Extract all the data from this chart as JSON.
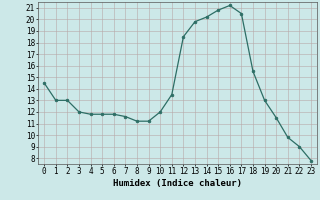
{
  "x": [
    0,
    1,
    2,
    3,
    4,
    5,
    6,
    7,
    8,
    9,
    10,
    11,
    12,
    13,
    14,
    15,
    16,
    17,
    18,
    19,
    20,
    21,
    22,
    23
  ],
  "y": [
    14.5,
    13.0,
    13.0,
    12.0,
    11.8,
    11.8,
    11.8,
    11.6,
    11.2,
    11.2,
    12.0,
    13.5,
    18.5,
    19.8,
    20.2,
    20.8,
    21.2,
    20.5,
    15.5,
    13.0,
    11.5,
    9.8,
    9.0,
    7.8
  ],
  "xlabel": "Humidex (Indice chaleur)",
  "xlim": [
    -0.5,
    23.5
  ],
  "ylim": [
    7.5,
    21.5
  ],
  "yticks": [
    8,
    9,
    10,
    11,
    12,
    13,
    14,
    15,
    16,
    17,
    18,
    19,
    20,
    21
  ],
  "xticks": [
    0,
    1,
    2,
    3,
    4,
    5,
    6,
    7,
    8,
    9,
    10,
    11,
    12,
    13,
    14,
    15,
    16,
    17,
    18,
    19,
    20,
    21,
    22,
    23
  ],
  "line_color": "#2d6e65",
  "marker_color": "#2d6e65",
  "bg_color": "#cce8e8",
  "grid_color_major": "#b8a8a8",
  "grid_color_minor": "#d4c0c0",
  "tick_fontsize": 5.5,
  "xlabel_fontsize": 6.5
}
